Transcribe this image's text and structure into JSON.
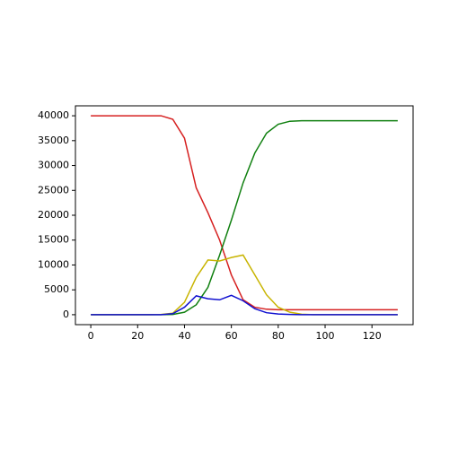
{
  "chart_data": {
    "type": "line",
    "x": [
      0,
      5,
      10,
      15,
      20,
      25,
      30,
      35,
      40,
      45,
      50,
      55,
      60,
      65,
      70,
      75,
      80,
      85,
      90,
      95,
      100,
      105,
      110,
      115,
      120,
      125,
      130,
      131
    ],
    "series": [
      {
        "color": "#d62020",
        "values": [
          40000,
          40000,
          40000,
          40000,
          40000,
          40000,
          40000,
          39300,
          35500,
          25500,
          20500,
          15000,
          8000,
          3000,
          1500,
          1100,
          1000,
          1000,
          1000,
          1000,
          1000,
          1000,
          1000,
          1000,
          1000,
          1000,
          1000,
          1000
        ]
      },
      {
        "color": "#108010",
        "values": [
          0,
          0,
          0,
          0,
          0,
          0,
          0,
          50,
          500,
          2000,
          5500,
          12000,
          19000,
          26500,
          32500,
          36500,
          38300,
          38900,
          39000,
          39000,
          39000,
          39000,
          39000,
          39000,
          39000,
          39000,
          39000,
          39000
        ]
      },
      {
        "color": "#c8b400",
        "values": [
          0,
          0,
          0,
          0,
          0,
          0,
          50,
          300,
          2500,
          7500,
          11000,
          10800,
          11500,
          12000,
          8000,
          4000,
          1500,
          500,
          100,
          0,
          0,
          0,
          0,
          0,
          0,
          0,
          0,
          0
        ]
      },
      {
        "color": "#1010d0",
        "values": [
          0,
          0,
          0,
          0,
          0,
          0,
          0,
          200,
          1500,
          3800,
          3200,
          3000,
          3900,
          2800,
          1200,
          400,
          150,
          50,
          0,
          0,
          0,
          0,
          0,
          0,
          0,
          0,
          0,
          0
        ]
      }
    ],
    "xlim": [
      -6.55,
      137.55
    ],
    "ylim": [
      -2000,
      42000
    ],
    "xticks": [
      0,
      20,
      40,
      60,
      80,
      100,
      120
    ],
    "yticks": [
      0,
      5000,
      10000,
      15000,
      20000,
      25000,
      30000,
      35000,
      40000
    ]
  }
}
